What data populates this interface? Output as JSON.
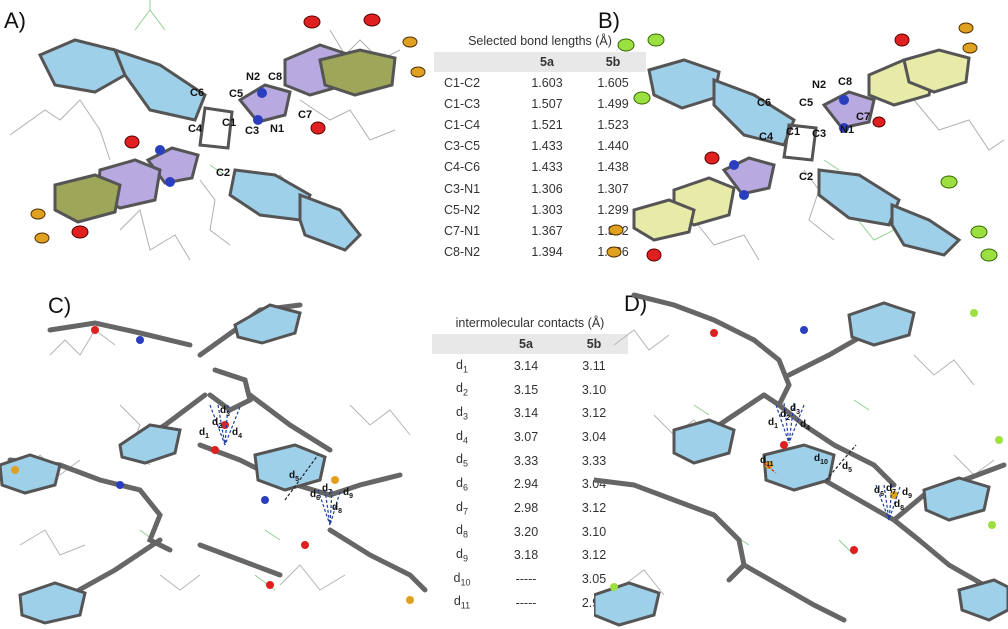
{
  "panels": {
    "a": {
      "label": "A)"
    },
    "b": {
      "label": "B)"
    },
    "c": {
      "label": "C)"
    },
    "d": {
      "label": "D)"
    }
  },
  "bond_table": {
    "caption": "Selected bond lengths (Å)",
    "columns": [
      "",
      "5a",
      "5b"
    ],
    "rows": [
      [
        "C1-C2",
        "1.603",
        "1.605"
      ],
      [
        "C1-C3",
        "1.507",
        "1.499"
      ],
      [
        "C1-C4",
        "1.521",
        "1.523"
      ],
      [
        "C3-C5",
        "1.433",
        "1.440"
      ],
      [
        "C4-C6",
        "1.433",
        "1.438"
      ],
      [
        "C3-N1",
        "1.306",
        "1.307"
      ],
      [
        "C5-N2",
        "1.303",
        "1.299"
      ],
      [
        "C7-N1",
        "1.367",
        "1.372"
      ],
      [
        "C8-N2",
        "1.394",
        "1.366"
      ]
    ]
  },
  "contact_table": {
    "caption": "intermolecular contacts (Å)",
    "columns": [
      "",
      "5a",
      "5b"
    ],
    "rows": [
      [
        "d",
        "1",
        "3.14",
        "3.11"
      ],
      [
        "d",
        "2",
        "3.15",
        "3.10"
      ],
      [
        "d",
        "3",
        "3.14",
        "3.12"
      ],
      [
        "d",
        "4",
        "3.07",
        "3.04"
      ],
      [
        "d",
        "5",
        "3.33",
        "3.33"
      ],
      [
        "d",
        "6",
        "2.94",
        "3.04"
      ],
      [
        "d",
        "7",
        "2.98",
        "3.12"
      ],
      [
        "d",
        "8",
        "3.20",
        "3.10"
      ],
      [
        "d",
        "9",
        "3.18",
        "3.12"
      ],
      [
        "d",
        "10",
        "-----",
        "3.05"
      ],
      [
        "d",
        "11",
        "-----",
        "2.92"
      ]
    ]
  },
  "atom_labels": {
    "a": [
      "C6",
      "C5",
      "N2",
      "C8",
      "C4",
      "C1",
      "C3",
      "N1",
      "C7",
      "C2"
    ],
    "b": [
      "N2",
      "C8",
      "C6",
      "C5",
      "C4",
      "C1",
      "C3",
      "N1",
      "C7",
      "C2"
    ]
  },
  "contact_labels": {
    "c": [
      [
        "d",
        "1"
      ],
      [
        "d",
        "2"
      ],
      [
        "d",
        "3"
      ],
      [
        "d",
        "4"
      ],
      [
        "d",
        "5"
      ],
      [
        "d",
        "6"
      ],
      [
        "d",
        "7"
      ],
      [
        "d",
        "8"
      ],
      [
        "d",
        "9"
      ]
    ],
    "d": [
      [
        "d",
        "1"
      ],
      [
        "d",
        "2"
      ],
      [
        "d",
        "3"
      ],
      [
        "d",
        "4"
      ],
      [
        "d",
        "11"
      ],
      [
        "d",
        "10"
      ],
      [
        "d",
        "5"
      ],
      [
        "d",
        "6"
      ],
      [
        "d",
        "7"
      ],
      [
        "d",
        "8"
      ],
      [
        "d",
        "9"
      ]
    ]
  },
  "colors": {
    "ring_blue": "#9fd0ea",
    "ring_purple": "#b8a9e0",
    "ring_olive": "#9ea65a",
    "ring_yellow": "#e8eaa8",
    "carbon": "#6d6d6d",
    "nitrogen": "#2a3fbf",
    "oxygen": "#e02020",
    "bromine": "#e0a020",
    "fluorine": "#9be040",
    "hydrogen_frag": "#8fd08f",
    "contact_blue": "#1f3fa0",
    "contact_black": "#222222",
    "contact_red": "#d02020"
  }
}
